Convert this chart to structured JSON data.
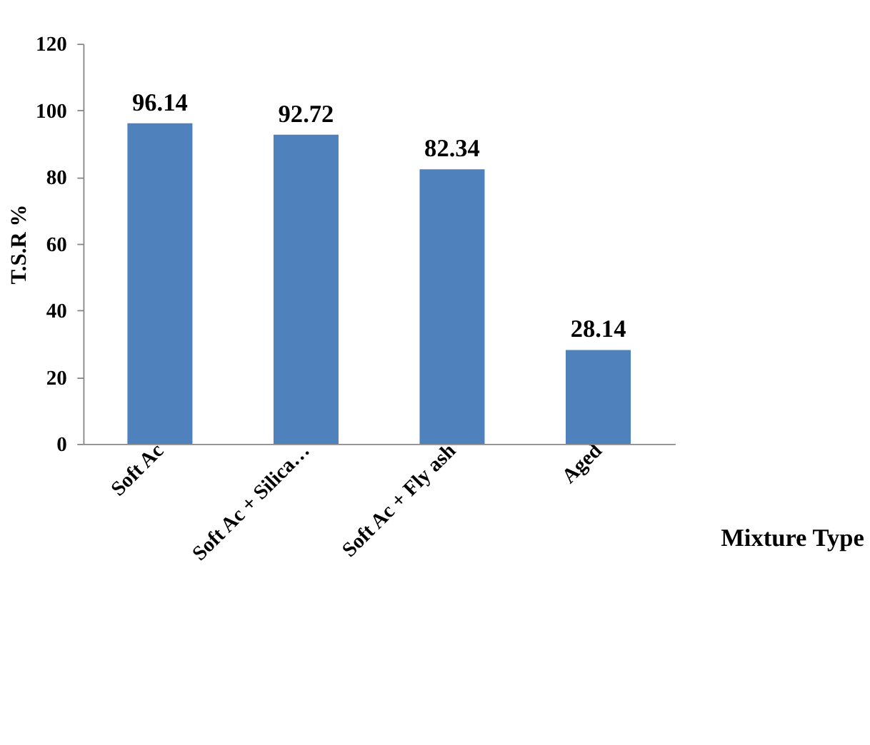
{
  "chart_data": {
    "type": "bar",
    "ylabel": "T.S.R %",
    "xlabel": "Mixture Type",
    "categories": [
      "Soft Ac",
      "Soft Ac + Silica…",
      "Soft Ac + Fly ash",
      "Aged"
    ],
    "values": [
      96.14,
      92.72,
      82.34,
      28.14
    ],
    "color": "#4f81bd",
    "ylim": [
      0,
      120
    ],
    "yticks": [
      0,
      20,
      40,
      60,
      80,
      100,
      120
    ],
    "grid": false,
    "data_labels": true
  }
}
